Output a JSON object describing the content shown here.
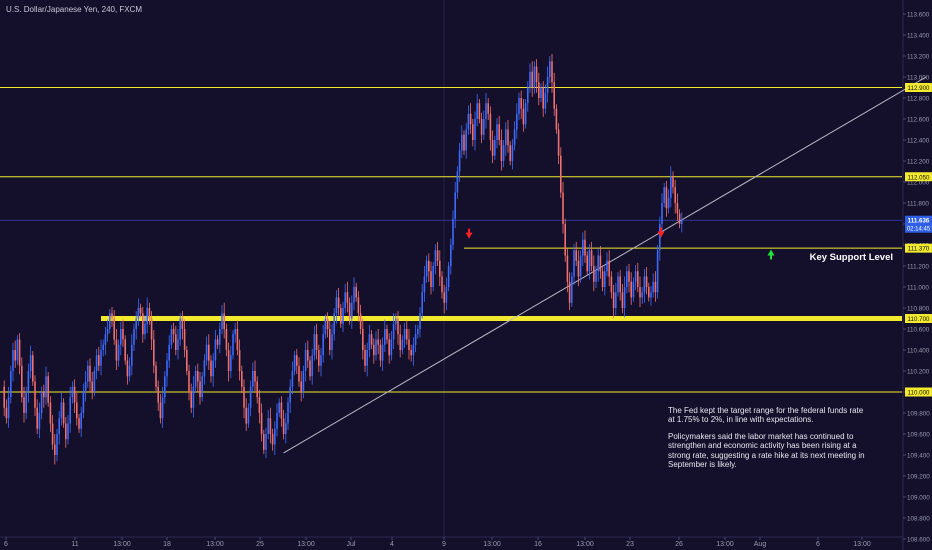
{
  "header": {
    "title": "U.S. Dollar/Japanese Yen, 240, FXCM"
  },
  "annotations": {
    "key_support_label": "Key Support Level",
    "note_paragraph_1": "The Fed kept the target range for the federal funds rate at 1.75% to 2%, in line with expectations.",
    "note_paragraph_2": "Policymakers said the labor market has continued to strengthen and economic activity has been rising at a strong rate, suggesting a rate hike at its next meeting in September is likely."
  },
  "price_badges": {
    "current_price": "111.636",
    "countdown": "02:14:45",
    "level_112900": "112.900",
    "level_112050": "112.050",
    "level_111370": "111.370",
    "level_110700": "110.700",
    "level_110000": "110.000"
  },
  "colors": {
    "background": "#14102b",
    "bull": "#3d6bff",
    "bear": "#f0706e",
    "level_line": "#f3ea2e",
    "trend_line": "#b9b9c9",
    "price_line": "#3d4fd0",
    "axis_text": "#9a9ab0",
    "down_arrow": "#ff2020",
    "up_arrow": "#23e03a"
  },
  "chart_data": {
    "type": "candlestick",
    "title": "U.S. Dollar/Japanese Yen, 240, FXCM",
    "symbol": "USD/JPY",
    "timeframe_minutes": 240,
    "ylim": [
      108.6,
      113.7
    ],
    "y_ticks": [
      "113.600",
      "113.400",
      "113.200",
      "113.000",
      "112.800",
      "112.600",
      "112.400",
      "112.200",
      "112.000",
      "111.800",
      "111.600",
      "111.400",
      "111.200",
      "111.000",
      "110.800",
      "110.600",
      "110.400",
      "110.200",
      "110.000",
      "109.800",
      "109.600",
      "109.400",
      "109.200",
      "109.000",
      "108.800",
      "108.600"
    ],
    "x_ticks": [
      {
        "label": "6",
        "pos": 6
      },
      {
        "label": "11",
        "pos": 75
      },
      {
        "label": "13:00",
        "pos": 122
      },
      {
        "label": "18",
        "pos": 167
      },
      {
        "label": "13:00",
        "pos": 215
      },
      {
        "label": "25",
        "pos": 260
      },
      {
        "label": "13:00",
        "pos": 306
      },
      {
        "label": "Jul",
        "pos": 351
      },
      {
        "label": "4",
        "pos": 392
      },
      {
        "label": "9",
        "pos": 444
      },
      {
        "label": "13:00",
        "pos": 492
      },
      {
        "label": "16",
        "pos": 538
      },
      {
        "label": "13:00",
        "pos": 585
      },
      {
        "label": "23",
        "pos": 630
      },
      {
        "label": "26",
        "pos": 679
      },
      {
        "label": "13:00",
        "pos": 725
      },
      {
        "label": "Aug",
        "pos": 760
      },
      {
        "label": "6",
        "pos": 818
      },
      {
        "label": "13:00",
        "pos": 862
      }
    ],
    "horizontal_levels": [
      {
        "price": 112.9,
        "label": "112.900",
        "style": "thin"
      },
      {
        "price": 112.05,
        "label": "112.050",
        "style": "thin"
      },
      {
        "price": 111.37,
        "label": "111.370",
        "style": "thin",
        "x_from_index": 210
      },
      {
        "price": 110.7,
        "label": "110.700",
        "style": "thick",
        "x_from_index": 45
      },
      {
        "price": 110.0,
        "label": "110.000",
        "style": "thin"
      }
    ],
    "trend_line": [
      {
        "index": 128,
        "price": 109.42
      },
      {
        "index": 420,
        "price": 113.0
      }
    ],
    "current_price": 111.636,
    "candle_x_start": 2,
    "candle_x_step": 2.2,
    "closes": [
      110.05,
      109.85,
      109.75,
      109.95,
      110.2,
      110.4,
      110.3,
      110.5,
      110.25,
      109.95,
      109.8,
      110.0,
      110.2,
      110.35,
      110.1,
      109.85,
      109.65,
      109.8,
      110.0,
      109.95,
      110.15,
      109.9,
      109.7,
      109.5,
      109.4,
      109.6,
      109.75,
      109.9,
      109.7,
      109.55,
      109.7,
      109.95,
      110.05,
      109.9,
      109.75,
      109.65,
      109.8,
      110.0,
      110.1,
      110.25,
      110.1,
      110.0,
      110.2,
      110.35,
      110.25,
      110.4,
      110.45,
      110.55,
      110.6,
      110.75,
      110.7,
      110.5,
      110.3,
      110.45,
      110.6,
      110.5,
      110.3,
      110.15,
      110.25,
      110.45,
      110.6,
      110.7,
      110.8,
      110.75,
      110.55,
      110.65,
      110.8,
      110.7,
      110.5,
      110.25,
      110.05,
      109.9,
      109.75,
      109.95,
      110.15,
      110.3,
      110.45,
      110.6,
      110.55,
      110.4,
      110.5,
      110.7,
      110.6,
      110.4,
      110.2,
      110.0,
      109.85,
      110.05,
      110.2,
      110.1,
      109.95,
      110.15,
      110.3,
      110.45,
      110.3,
      110.15,
      110.3,
      110.5,
      110.45,
      110.6,
      110.75,
      110.6,
      110.4,
      110.2,
      110.35,
      110.55,
      110.6,
      110.4,
      110.2,
      110.05,
      109.85,
      109.7,
      109.85,
      110.05,
      110.2,
      110.1,
      109.95,
      109.8,
      109.6,
      109.45,
      109.6,
      109.75,
      109.6,
      109.5,
      109.65,
      109.8,
      109.9,
      109.75,
      109.6,
      109.7,
      109.9,
      110.05,
      110.2,
      110.35,
      110.25,
      110.1,
      110.0,
      110.2,
      110.4,
      110.3,
      110.15,
      110.35,
      110.55,
      110.4,
      110.25,
      110.35,
      110.55,
      110.7,
      110.6,
      110.4,
      110.55,
      110.75,
      110.9,
      110.8,
      110.65,
      110.8,
      110.95,
      110.85,
      110.7,
      110.85,
      111.0,
      110.9,
      110.75,
      110.6,
      110.4,
      110.25,
      110.4,
      110.55,
      110.45,
      110.35,
      110.5,
      110.45,
      110.3,
      110.45,
      110.6,
      110.5,
      110.35,
      110.5,
      110.65,
      110.7,
      110.55,
      110.4,
      110.5,
      110.6,
      110.5,
      110.4,
      110.35,
      110.45,
      110.55,
      110.6,
      110.75,
      110.95,
      111.1,
      111.25,
      111.15,
      111.0,
      111.2,
      111.35,
      111.25,
      111.1,
      110.95,
      110.85,
      111.0,
      111.2,
      111.4,
      111.65,
      111.9,
      112.1,
      112.3,
      112.45,
      112.3,
      112.5,
      112.65,
      112.55,
      112.4,
      112.6,
      112.75,
      112.6,
      112.45,
      112.6,
      112.75,
      112.65,
      112.4,
      112.25,
      112.4,
      112.55,
      112.4,
      112.2,
      112.35,
      112.5,
      112.35,
      112.2,
      112.35,
      112.5,
      112.65,
      112.8,
      112.7,
      112.55,
      112.75,
      112.9,
      113.05,
      112.9,
      113.1,
      112.95,
      112.8,
      112.9,
      112.7,
      112.85,
      113.0,
      113.15,
      112.95,
      112.7,
      112.5,
      112.25,
      111.9,
      111.6,
      111.3,
      111.05,
      110.85,
      111.1,
      111.35,
      111.25,
      111.1,
      111.3,
      111.45,
      111.3,
      111.15,
      111.35,
      111.2,
      111.05,
      111.15,
      111.3,
      111.15,
      111.0,
      111.15,
      111.25,
      111.1,
      110.95,
      110.8,
      110.95,
      111.1,
      110.95,
      110.8,
      111.0,
      111.15,
      111.05,
      110.9,
      111.05,
      111.15,
      111.0,
      110.9,
      110.95,
      111.1,
      111.0,
      110.9,
      110.95,
      111.05,
      110.95,
      111.35,
      111.6,
      111.8,
      111.95,
      111.75,
      111.85,
      112.05,
      111.95,
      111.8,
      111.7,
      111.6,
      111.65
    ],
    "vertical_lines": [
      {
        "x": 444,
        "style": "thin-dark"
      }
    ],
    "markers": [
      {
        "type": "down-arrow",
        "x": 469,
        "price": 111.48
      },
      {
        "type": "down-arrow",
        "x": 661,
        "price": 111.49
      },
      {
        "type": "up-arrow",
        "x": 771,
        "price": 111.31
      }
    ]
  }
}
